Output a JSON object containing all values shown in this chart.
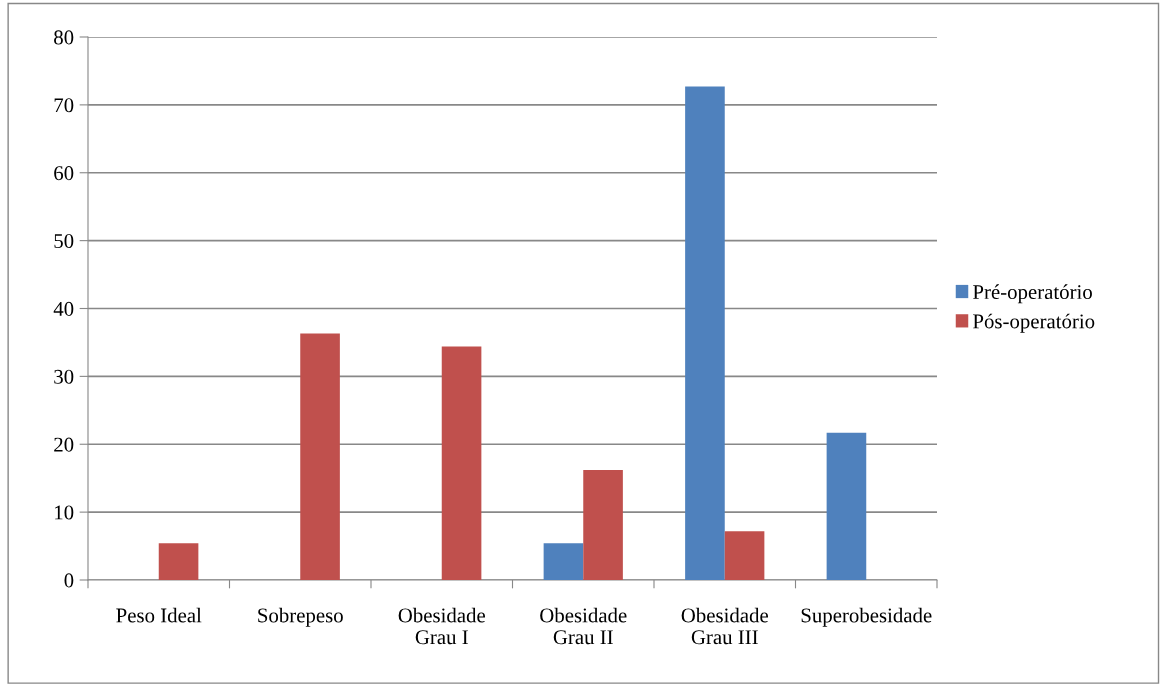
{
  "chart_data": {
    "type": "bar",
    "categories": [
      "Peso Ideal",
      "Sobrepeso",
      "Obesidade\nGrau I",
      "Obesidade\nGrau II",
      "Obesidade\nGrau III",
      "Superobesidade"
    ],
    "series": [
      {
        "name": "Pré-operatório",
        "color": "#4f81bd",
        "values": [
          0,
          0,
          0,
          5.4,
          72.7,
          21.7
        ]
      },
      {
        "name": "Pós-operatório",
        "color": "#c0504d",
        "values": [
          5.4,
          36.3,
          34.4,
          16.2,
          7.2,
          0
        ]
      }
    ],
    "ylim": [
      0,
      80
    ],
    "yticks": [
      0,
      10,
      20,
      30,
      40,
      50,
      60,
      70,
      80
    ],
    "grid": "y",
    "legend": "right"
  }
}
